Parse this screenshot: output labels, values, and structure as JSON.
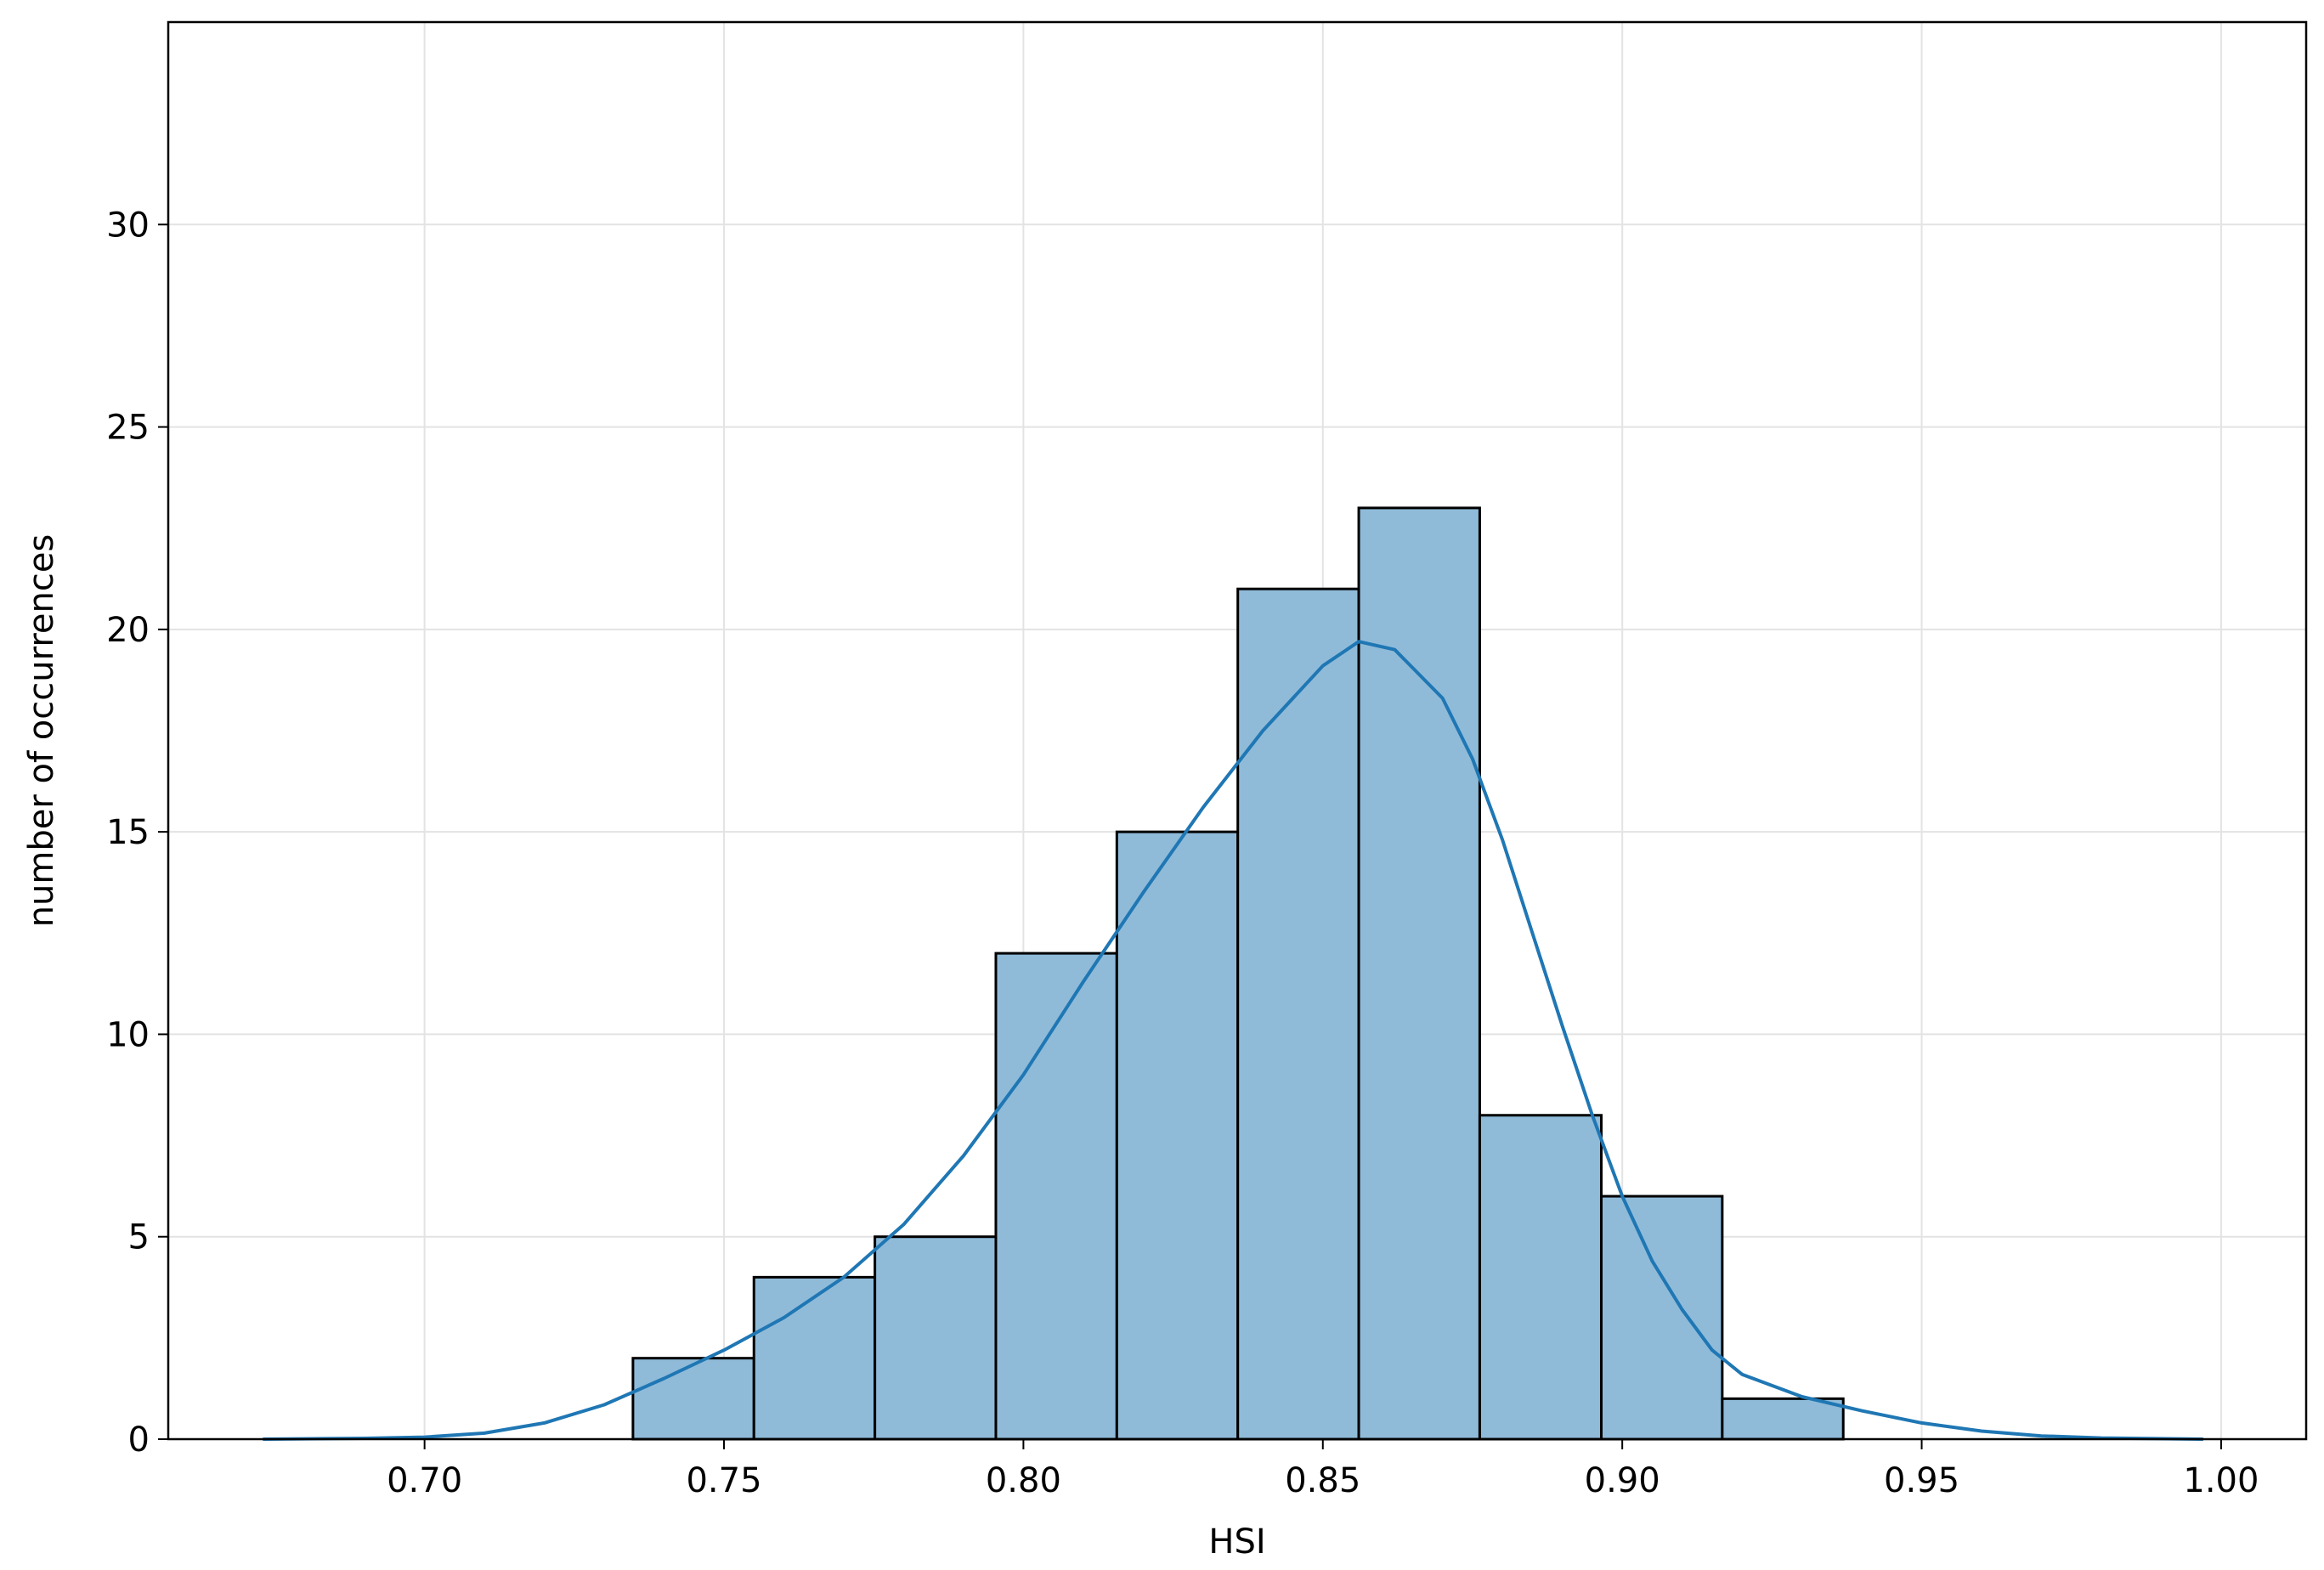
{
  "chart_data": {
    "type": "histogram",
    "x_label": "HSI",
    "y_label": "number of occurrences",
    "bins": [
      0.7348,
      0.755,
      0.7752,
      0.7954,
      0.8156,
      0.8358,
      0.856,
      0.8762,
      0.8965,
      0.9167,
      0.9369
    ],
    "counts": [
      2,
      4,
      5,
      12,
      15,
      21,
      23,
      8,
      6,
      1
    ],
    "color": "#8fbbd9",
    "edge_color": "#000000",
    "kde": {
      "color": "#1f77b4",
      "x": [
        0.673,
        0.69,
        0.7,
        0.71,
        0.72,
        0.73,
        0.74,
        0.75,
        0.76,
        0.77,
        0.78,
        0.79,
        0.8,
        0.81,
        0.82,
        0.83,
        0.84,
        0.85,
        0.856,
        0.862,
        0.87,
        0.875,
        0.88,
        0.885,
        0.89,
        0.895,
        0.9,
        0.905,
        0.91,
        0.915,
        0.92,
        0.93,
        0.94,
        0.95,
        0.96,
        0.97,
        0.98,
        0.997
      ],
      "y": [
        0,
        0.02,
        0.05,
        0.15,
        0.4,
        0.85,
        1.5,
        2.2,
        3.0,
        4.0,
        5.3,
        7.0,
        9.0,
        11.3,
        13.5,
        15.6,
        17.5,
        19.1,
        19.7,
        19.5,
        18.3,
        16.8,
        14.8,
        12.5,
        10.2,
        8.0,
        6.0,
        4.4,
        3.2,
        2.2,
        1.6,
        1.05,
        0.7,
        0.4,
        0.2,
        0.08,
        0.03,
        0
      ]
    },
    "xlim": [
      0.6572,
      1.0142
    ],
    "ylim": [
      0,
      35
    ],
    "xticks": [
      {
        "value": 0.7,
        "label": "0.70"
      },
      {
        "value": 0.75,
        "label": "0.75"
      },
      {
        "value": 0.8,
        "label": "0.80"
      },
      {
        "value": 0.85,
        "label": "0.85"
      },
      {
        "value": 0.9,
        "label": "0.90"
      },
      {
        "value": 0.95,
        "label": "0.95"
      },
      {
        "value": 1.0,
        "label": "1.00"
      }
    ],
    "yticks": [
      0,
      5,
      10,
      15,
      20,
      25,
      30
    ],
    "grid": true
  }
}
